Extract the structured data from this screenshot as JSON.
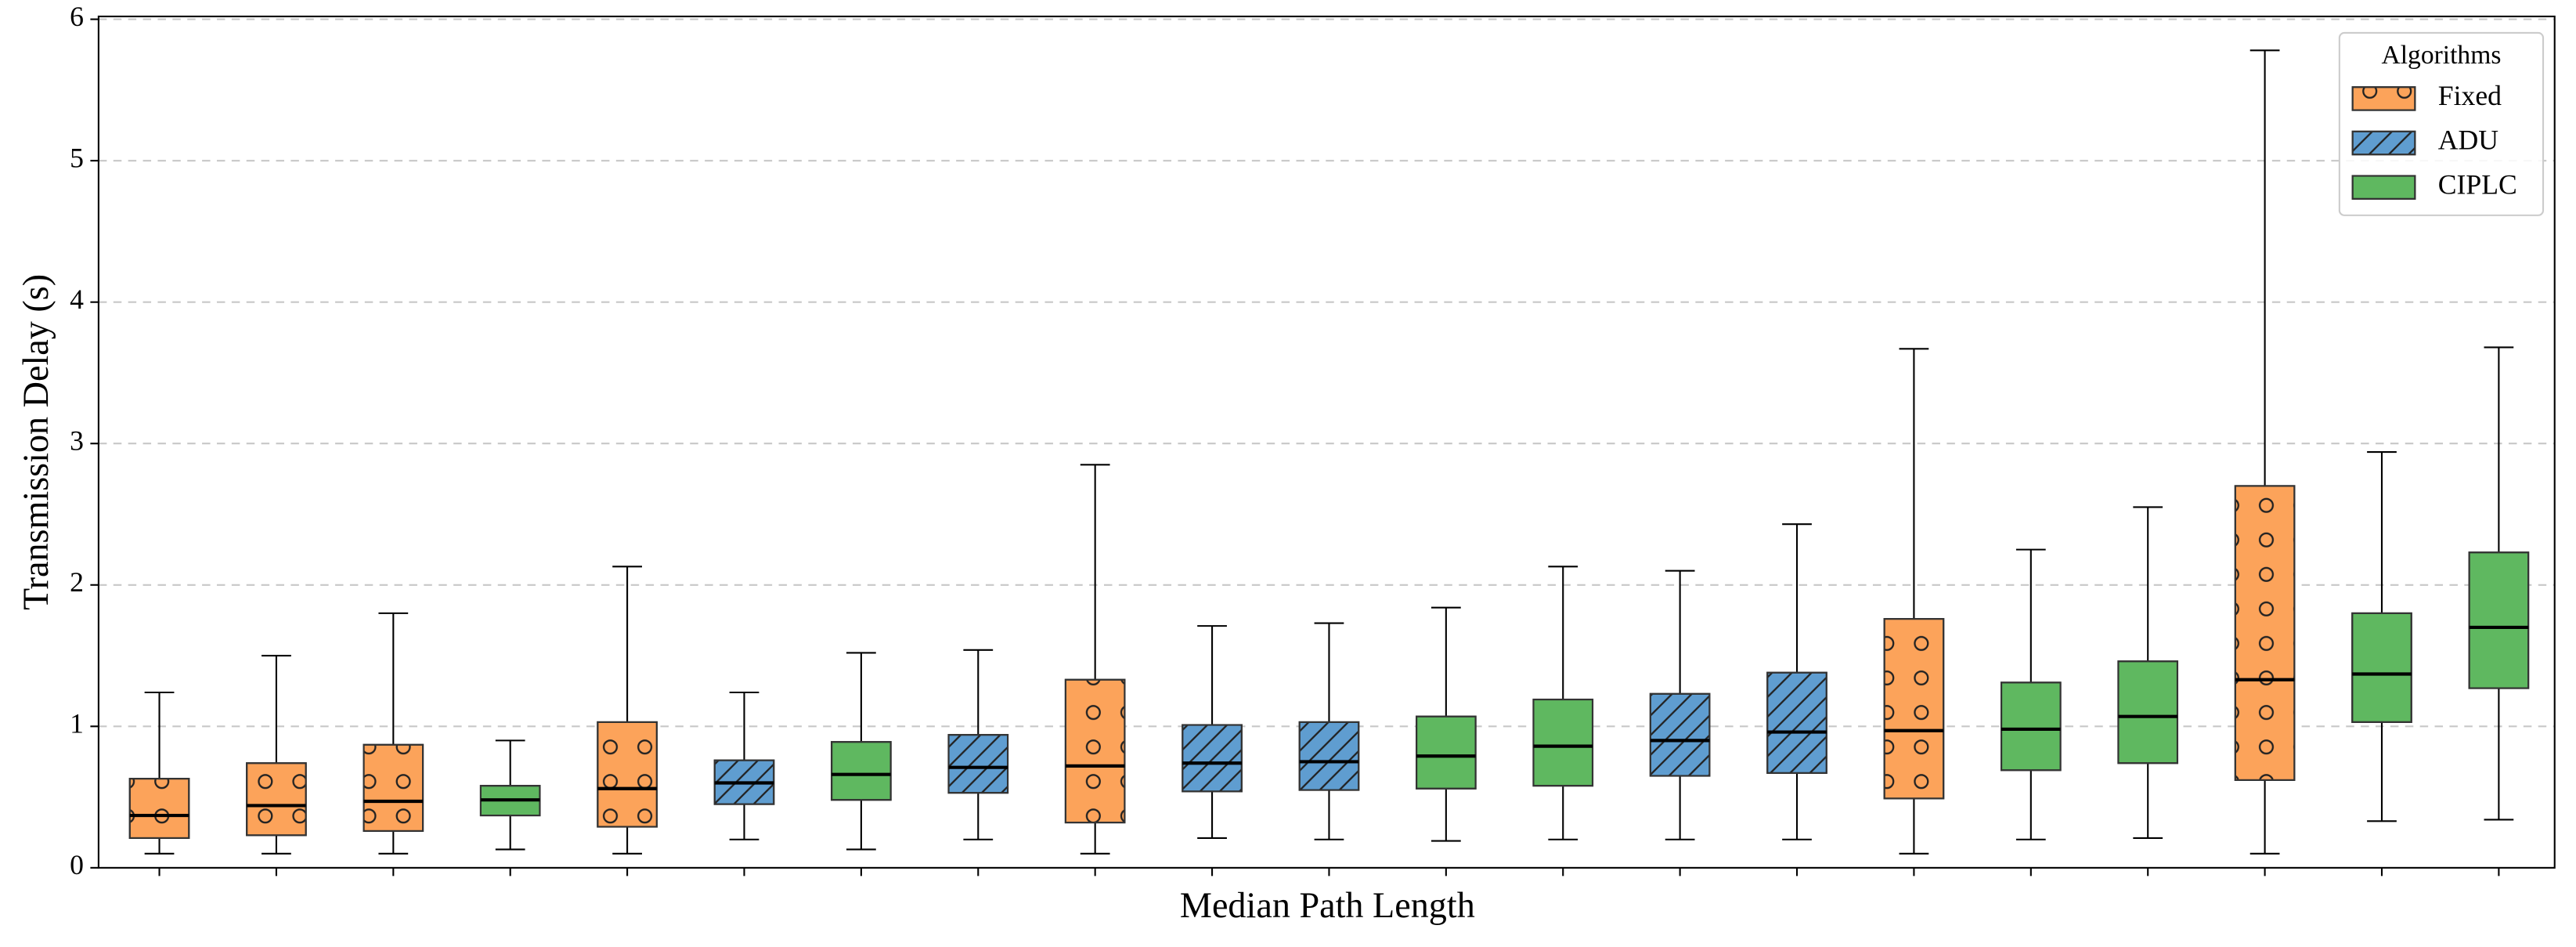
{
  "chart_data": {
    "type": "box",
    "xlabel": "Median Path Length",
    "ylabel": "Transmission Delay (s)",
    "ylim": [
      0,
      6.02
    ],
    "yticks": [
      0,
      1,
      2,
      3,
      4,
      5,
      6
    ],
    "grid": true,
    "legend": {
      "title": "Algorithms",
      "loc": "upper right"
    },
    "series": [
      {
        "name": "Fixed",
        "color": "#fca35a",
        "hatch": "o",
        "boxes": [
          {
            "low": 0.1,
            "q1": 0.21,
            "median": 0.37,
            "q3": 0.63,
            "high": 1.24
          },
          {
            "low": 0.1,
            "q1": 0.23,
            "median": 0.44,
            "q3": 0.74,
            "high": 1.5
          },
          {
            "low": 0.1,
            "q1": 0.26,
            "median": 0.47,
            "q3": 0.87,
            "high": 1.8
          },
          null,
          {
            "low": 0.1,
            "q1": 0.29,
            "median": 0.56,
            "q3": 1.03,
            "high": 2.13
          },
          null,
          null,
          null,
          {
            "low": 0.1,
            "q1": 0.32,
            "median": 0.72,
            "q3": 1.33,
            "high": 2.85
          },
          null,
          null,
          null,
          null,
          null,
          null,
          {
            "low": 0.1,
            "q1": 0.49,
            "median": 0.97,
            "q3": 1.76,
            "high": 3.67
          },
          null,
          null,
          {
            "low": 0.1,
            "q1": 0.62,
            "median": 1.33,
            "q3": 2.7,
            "high": 5.78
          },
          null,
          null
        ]
      },
      {
        "name": "ADU",
        "color": "#5f9dd0",
        "hatch": "/",
        "boxes": [
          null,
          null,
          null,
          null,
          null,
          {
            "low": 0.2,
            "q1": 0.45,
            "median": 0.6,
            "q3": 0.76,
            "high": 1.24
          },
          null,
          {
            "low": 0.2,
            "q1": 0.53,
            "median": 0.71,
            "q3": 0.94,
            "high": 1.54
          },
          null,
          {
            "low": 0.21,
            "q1": 0.54,
            "median": 0.74,
            "q3": 1.01,
            "high": 1.71
          },
          {
            "low": 0.2,
            "q1": 0.55,
            "median": 0.75,
            "q3": 1.03,
            "high": 1.73
          },
          null,
          null,
          {
            "low": 0.2,
            "q1": 0.65,
            "median": 0.9,
            "q3": 1.23,
            "high": 2.1
          },
          {
            "low": 0.2,
            "q1": 0.67,
            "median": 0.96,
            "q3": 1.38,
            "high": 2.43
          },
          null,
          null,
          null,
          null,
          null,
          null
        ]
      },
      {
        "name": "CIPLC",
        "color": "#5fb860",
        "hatch": "\\",
        "boxes": [
          null,
          null,
          null,
          {
            "low": 0.13,
            "q1": 0.37,
            "median": 0.48,
            "q3": 0.58,
            "high": 0.9
          },
          null,
          null,
          {
            "low": 0.13,
            "q1": 0.48,
            "median": 0.66,
            "q3": 0.89,
            "high": 1.52
          },
          null,
          null,
          null,
          null,
          {
            "low": 0.19,
            "q1": 0.56,
            "median": 0.79,
            "q3": 1.07,
            "high": 1.84
          },
          {
            "low": 0.2,
            "q1": 0.58,
            "median": 0.86,
            "q3": 1.19,
            "high": 2.13
          },
          null,
          null,
          null,
          {
            "low": 0.2,
            "q1": 0.69,
            "median": 0.98,
            "q3": 1.31,
            "high": 2.25
          },
          {
            "low": 0.21,
            "q1": 0.74,
            "median": 1.07,
            "q3": 1.46,
            "high": 2.55
          },
          null,
          {
            "low": 0.33,
            "q1": 1.03,
            "median": 1.37,
            "q3": 1.8,
            "high": 2.94
          },
          {
            "low": 0.34,
            "q1": 1.27,
            "median": 1.7,
            "q3": 2.23,
            "high": 3.68
          }
        ]
      }
    ]
  }
}
